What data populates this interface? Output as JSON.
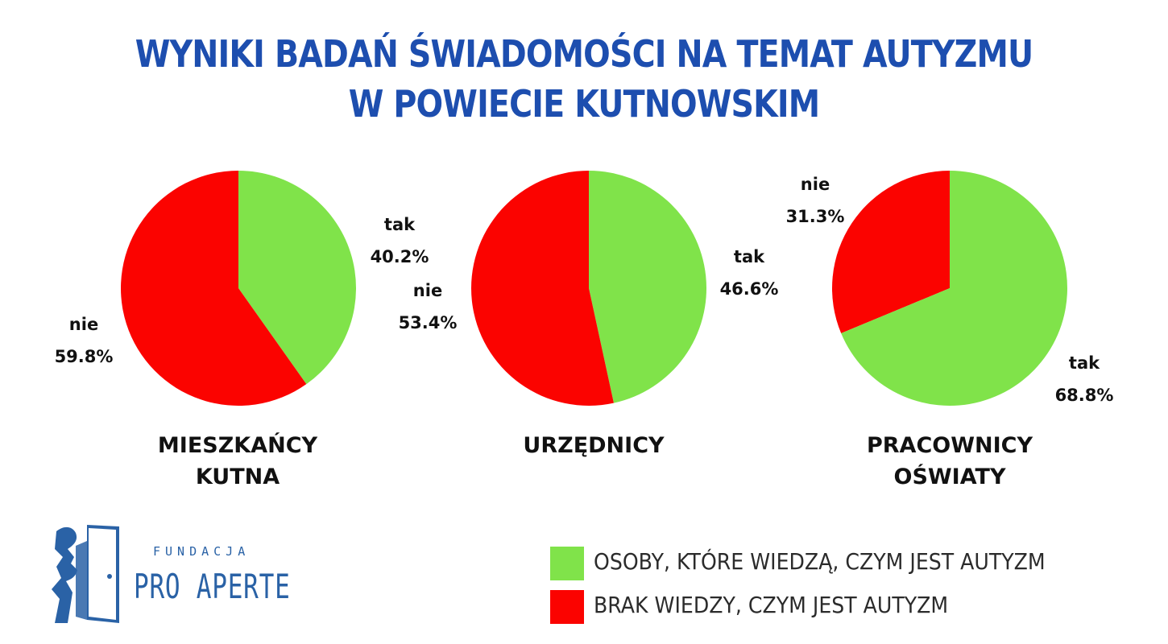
{
  "title": {
    "line1": "WYNIKI BADAŃ ŚWIADOMOŚCI NA TEMAT AUTYZMU",
    "line2": "W POWIECIE KUTNOWSKIM"
  },
  "colors": {
    "title": "#1d4eaf",
    "tak": "#80e34a",
    "nie": "#fb0300",
    "logo": "#2a62a6"
  },
  "chart_data": [
    {
      "type": "pie",
      "caption": [
        "MIESZKAŃCY",
        "KUTNA"
      ],
      "slices": [
        {
          "label": "tak",
          "value": 40.2,
          "display": "40.2%",
          "color": "#80e34a"
        },
        {
          "label": "nie",
          "value": 59.8,
          "display": "59.8%",
          "color": "#fb0300"
        }
      ]
    },
    {
      "type": "pie",
      "caption": [
        "URZĘDNICY"
      ],
      "slices": [
        {
          "label": "tak",
          "value": 46.6,
          "display": "46.6%",
          "color": "#80e34a"
        },
        {
          "label": "nie",
          "value": 53.4,
          "display": "53.4%",
          "color": "#fb0300"
        }
      ]
    },
    {
      "type": "pie",
      "caption": [
        "PRACOWNICY",
        "OŚWIATY"
      ],
      "slices": [
        {
          "label": "tak",
          "value": 68.8,
          "display": "68.8%",
          "color": "#80e34a"
        },
        {
          "label": "nie",
          "value": 31.3,
          "display": "31.3%",
          "color": "#fb0300"
        }
      ]
    }
  ],
  "legend": [
    {
      "label": "OSOBY, KTÓRE WIEDZĄ, CZYM JEST AUTYZM",
      "color": "#80e34a"
    },
    {
      "label": "BRAK WIEDZY, CZYM JEST AUTYZM",
      "color": "#fb0300"
    }
  ],
  "logo": {
    "small": "FUNDACJA",
    "big": "PRO APERTE",
    "icon": "door-person-logo-icon"
  }
}
